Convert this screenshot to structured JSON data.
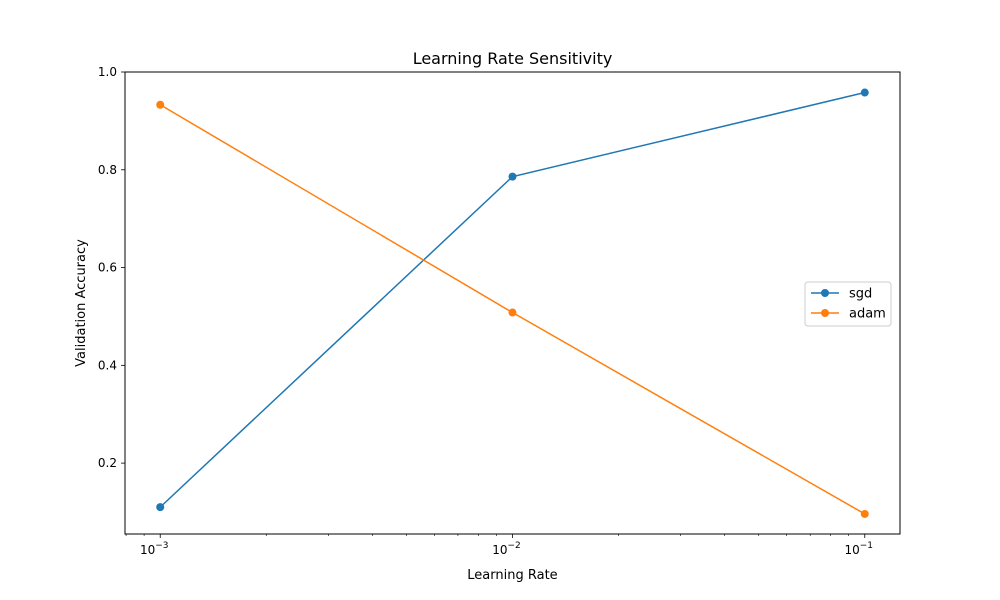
{
  "chart_data": {
    "type": "line",
    "title": "Learning Rate Sensitivity",
    "xlabel": "Learning Rate",
    "ylabel": "Validation Accuracy",
    "xscale": "log",
    "x": [
      0.001,
      0.01,
      0.1
    ],
    "xticks": [
      {
        "value": 0.001,
        "base": "10",
        "exp": "−3"
      },
      {
        "value": 0.01,
        "base": "10",
        "exp": "−2"
      },
      {
        "value": 0.1,
        "base": "10",
        "exp": "−1"
      }
    ],
    "yticks": [
      "0.2",
      "0.4",
      "0.6",
      "0.8",
      "1.0"
    ],
    "ylim": [
      0.055,
      1.0
    ],
    "grid": false,
    "legend_position": "center-right",
    "series": [
      {
        "name": "sgd",
        "color": "#1f77b4",
        "values": [
          0.11,
          0.786,
          0.958
        ]
      },
      {
        "name": "adam",
        "color": "#ff7f0e",
        "values": [
          0.933,
          0.508,
          0.096
        ]
      }
    ]
  }
}
